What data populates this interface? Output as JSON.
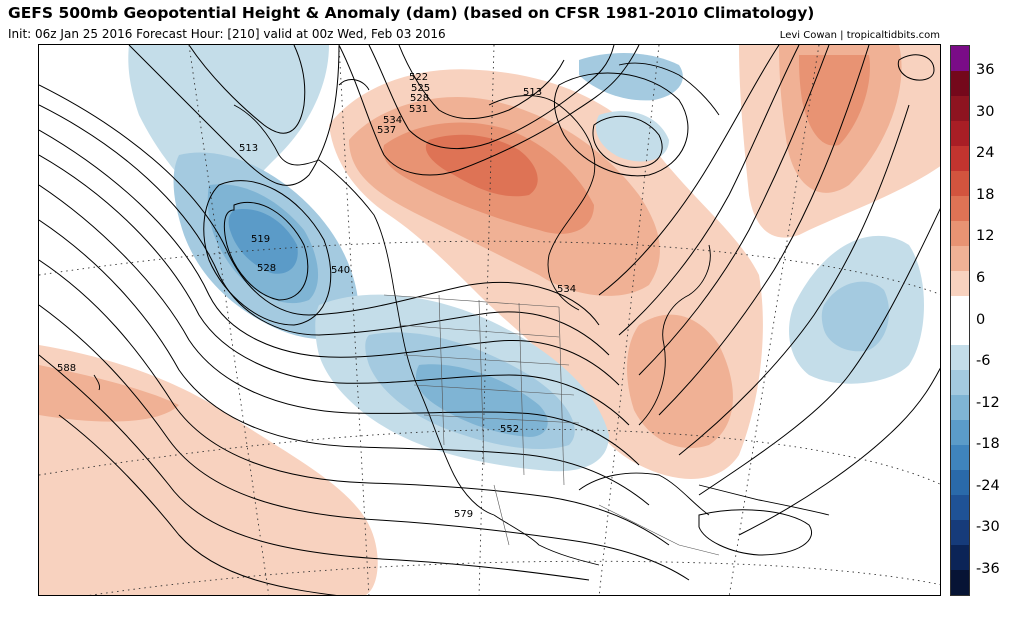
{
  "header": {
    "title": "GEFS 500mb Geopotential Height & Anomaly (dam) (based on CFSR 1981-2010 Climatology)",
    "subtitle": "Init: 06z Jan 25 2016   Forecast Hour: [210]   valid at 00z Wed, Feb 03 2016",
    "credit": "Levi Cowan | tropicaltidbits.com"
  },
  "colorbar": {
    "colors": [
      "#7a0c87",
      "#74081b",
      "#8e1420",
      "#a81e25",
      "#c2342f",
      "#d2543e",
      "#de7355",
      "#e89373",
      "#f0b195",
      "#f8d2bf",
      "#ffffff",
      "#ffffff",
      "#c4dde9",
      "#a4cae0",
      "#7fb4d4",
      "#5b9bc8",
      "#3f84bd",
      "#2a6aaa",
      "#1f5296",
      "#163b7a",
      "#0b2457",
      "#071435"
    ],
    "ticks": [
      "36",
      "30",
      "24",
      "18",
      "12",
      "6",
      "0",
      "-6",
      "-12",
      "-18",
      "-24",
      "-30",
      "-36"
    ]
  },
  "map": {
    "contour_labels": [
      "522",
      "525",
      "528",
      "531",
      "534",
      "537",
      "513",
      "513",
      "519",
      "528",
      "540",
      "534",
      "588",
      "552",
      "579"
    ]
  }
}
